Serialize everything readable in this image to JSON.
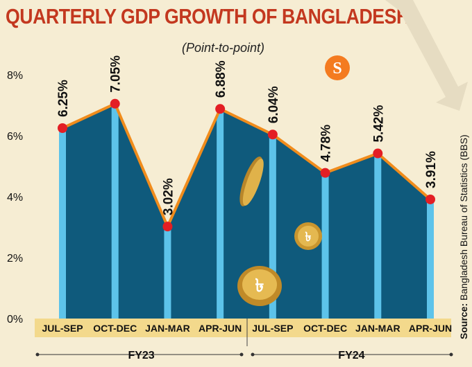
{
  "title": "QUARTERLY GDP GROWTH OF BANGLADESH",
  "subtitle": "(Point-to-point)",
  "source": {
    "label": "Source:",
    "text": "Bangladesh Bureau of Statistics (BBS)"
  },
  "logo_letter": "S",
  "colors": {
    "title": "#c3381f",
    "area_fill": "#0f5a7c",
    "bar": "#5dc3ea",
    "line": "#f08c1c",
    "marker": "#e31e24",
    "axis_band": "#f3d98c",
    "background": "#f6edd3",
    "logo": "#f47b20",
    "coin": "#d9a53a"
  },
  "chart_data": {
    "type": "area",
    "title": "QUARTERLY GDP GROWTH OF BANGLADESH",
    "subtitle": "(Point-to-point)",
    "categories": [
      "JUL-SEP",
      "OCT-DEC",
      "JAN-MAR",
      "APR-JUN",
      "JUL-SEP",
      "OCT-DEC",
      "JAN-MAR",
      "APR-JUN"
    ],
    "values": [
      6.25,
      7.05,
      3.02,
      6.88,
      6.04,
      4.78,
      5.42,
      3.91
    ],
    "data_labels": [
      "6.25%",
      "7.05%",
      "3.02%",
      "6.88%",
      "6.04%",
      "4.78%",
      "5.42%",
      "3.91%"
    ],
    "groups": [
      {
        "label": "FY23",
        "start": 0,
        "end": 3
      },
      {
        "label": "FY24",
        "start": 4,
        "end": 7
      }
    ],
    "yticks": [
      0,
      2,
      4,
      6,
      8
    ],
    "ytick_labels": [
      "0%",
      "2%",
      "4%",
      "6%",
      "8%"
    ],
    "ylim": [
      0,
      8
    ],
    "xlabel": "",
    "ylabel": "",
    "grid": false,
    "legend": "none"
  }
}
